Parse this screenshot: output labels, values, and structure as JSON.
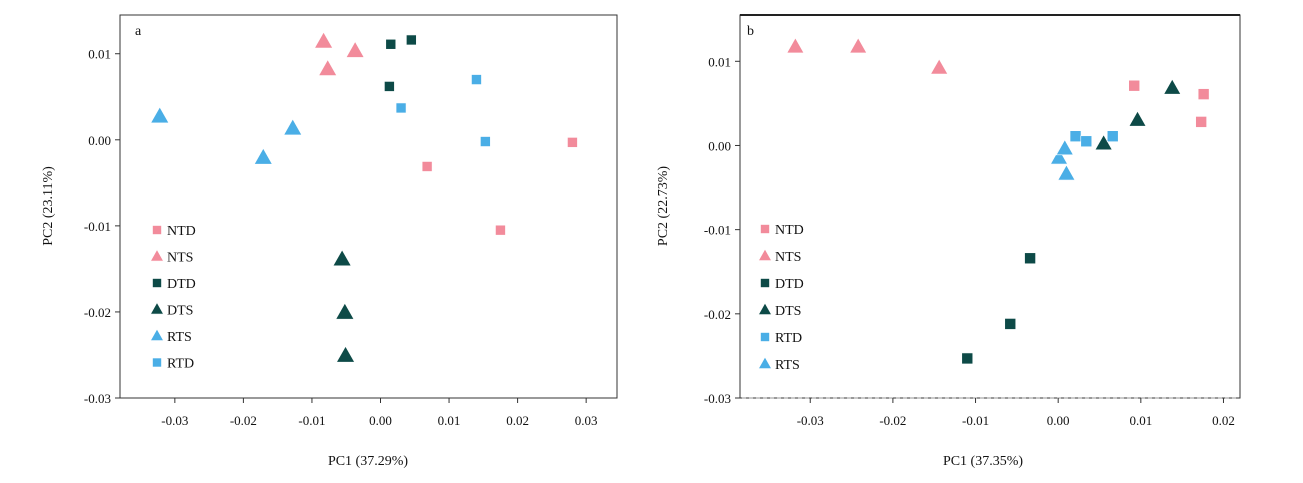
{
  "chart_data": [
    {
      "panel": "a",
      "type": "scatter",
      "xlabel": "PC1 (37.29%)",
      "ylabel": "PC2 (23.11%)",
      "xlim": [
        -0.038,
        0.0345
      ],
      "ylim": [
        -0.03,
        0.0145
      ],
      "xticks": [
        -0.03,
        -0.02,
        -0.01,
        0.0,
        0.01,
        0.02,
        0.03
      ],
      "xtick_labels": [
        "-0.03",
        "-0.02",
        "-0.01",
        "0.00",
        "0.01",
        "0.02",
        "0.03"
      ],
      "yticks": [
        0.01,
        0.0,
        -0.01,
        -0.02,
        -0.03
      ],
      "ytick_labels": [
        "0.01",
        "0.00",
        "-0.01",
        "-0.02",
        "-0.03"
      ],
      "legend_position": "bottom-left",
      "series": [
        {
          "name": "NTD",
          "marker": "square",
          "color": "#f28b9b",
          "points": [
            [
              0.0068,
              -0.0031
            ],
            [
              0.0175,
              -0.0105
            ],
            [
              0.028,
              -0.0003
            ]
          ]
        },
        {
          "name": "NTS",
          "marker": "triangle",
          "color": "#f28b9b",
          "points": [
            [
              -0.0083,
              0.0114
            ],
            [
              -0.0037,
              0.0103
            ],
            [
              -0.0077,
              0.0082
            ]
          ]
        },
        {
          "name": "DTD",
          "marker": "square",
          "color": "#0d4a47",
          "points": [
            [
              0.0015,
              0.0111
            ],
            [
              0.0045,
              0.0116
            ],
            [
              0.0013,
              0.0062
            ]
          ]
        },
        {
          "name": "DTS",
          "marker": "triangle",
          "color": "#0d4a47",
          "points": [
            [
              -0.0056,
              -0.0139
            ],
            [
              -0.0052,
              -0.0201
            ],
            [
              -0.0051,
              -0.0251
            ]
          ]
        },
        {
          "name": "RTS",
          "marker": "triangle",
          "color": "#4aaee6",
          "points": [
            [
              -0.0322,
              0.0027
            ],
            [
              -0.0128,
              0.0013
            ],
            [
              -0.0171,
              -0.0021
            ]
          ]
        },
        {
          "name": "RTD",
          "marker": "square",
          "color": "#4aaee6",
          "points": [
            [
              0.003,
              0.0037
            ],
            [
              0.014,
              0.007
            ],
            [
              0.0153,
              -0.0002
            ]
          ]
        }
      ]
    },
    {
      "panel": "b",
      "type": "scatter",
      "xlabel": "PC1 (37.35%)",
      "ylabel": "PC2 (22.73%)",
      "xlim": [
        -0.0385,
        0.022
      ],
      "ylim": [
        -0.03,
        0.0155
      ],
      "xticks": [
        -0.03,
        -0.02,
        -0.01,
        0.0,
        0.01,
        0.02
      ],
      "xtick_labels": [
        "-0.03",
        "-0.02",
        "-0.01",
        "0.00",
        "0.01",
        "0.02"
      ],
      "yticks": [
        0.01,
        0.0,
        -0.01,
        -0.02,
        -0.03
      ],
      "ytick_labels": [
        "0.01",
        "0.00",
        "-0.01",
        "-0.02",
        "-0.03"
      ],
      "legend_position": "bottom-left",
      "series": [
        {
          "name": "NTD",
          "marker": "square",
          "color": "#f28b9b",
          "points": [
            [
              0.0092,
              0.0071
            ],
            [
              0.0176,
              0.0061
            ],
            [
              0.0173,
              0.0028
            ]
          ]
        },
        {
          "name": "NTS",
          "marker": "triangle",
          "color": "#f28b9b",
          "points": [
            [
              -0.0318,
              0.0117
            ],
            [
              -0.0242,
              0.0117
            ],
            [
              -0.0144,
              0.0092
            ]
          ]
        },
        {
          "name": "DTD",
          "marker": "square",
          "color": "#0d4a47",
          "points": [
            [
              -0.0034,
              -0.0134
            ],
            [
              -0.0058,
              -0.0212
            ],
            [
              -0.011,
              -0.0253
            ]
          ]
        },
        {
          "name": "DTS",
          "marker": "triangle",
          "color": "#0d4a47",
          "points": [
            [
              0.0138,
              0.0068
            ],
            [
              0.0096,
              0.003
            ],
            [
              0.0055,
              0.0002
            ]
          ]
        },
        {
          "name": "RTD",
          "marker": "square",
          "color": "#4aaee6",
          "points": [
            [
              0.0021,
              0.0011
            ],
            [
              0.0034,
              0.0005
            ],
            [
              0.0066,
              0.0011
            ]
          ]
        },
        {
          "name": "RTS",
          "marker": "triangle",
          "color": "#4aaee6",
          "points": [
            [
              0.0001,
              -0.0015
            ],
            [
              0.0008,
              -0.0004
            ],
            [
              0.001,
              -0.0034
            ]
          ]
        }
      ]
    }
  ]
}
